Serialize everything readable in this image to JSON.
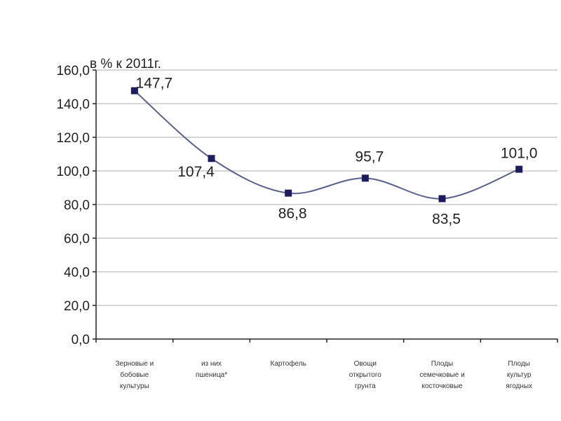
{
  "chart_data": {
    "type": "line",
    "unit_label": "в % к 2011г.",
    "categories": [
      [
        "Зерновые и",
        "бобовые",
        "культуры"
      ],
      [
        "из них",
        "пшеница*"
      ],
      [
        "Картофель"
      ],
      [
        "Овощи",
        "открытого",
        "грунта"
      ],
      [
        "Плоды",
        "семечковые и",
        "косточковые"
      ],
      [
        "Плоды",
        "культур",
        "ягодных"
      ]
    ],
    "values": [
      147.7,
      107.4,
      86.8,
      95.7,
      83.5,
      101.0
    ],
    "value_labels": [
      "147,7",
      "107,4",
      "86,8",
      "95,7",
      "83,5",
      "101,0"
    ],
    "y_ticks": [
      "0,0",
      "20,0",
      "40,0",
      "60,0",
      "80,0",
      "100,0",
      "120,0",
      "140,0",
      "160,0"
    ],
    "ylim": [
      0,
      160
    ],
    "grid": true,
    "line_color": "#5a5f8c",
    "marker_color": "#1c1c5e",
    "grid_color": "#c8c8c8"
  }
}
